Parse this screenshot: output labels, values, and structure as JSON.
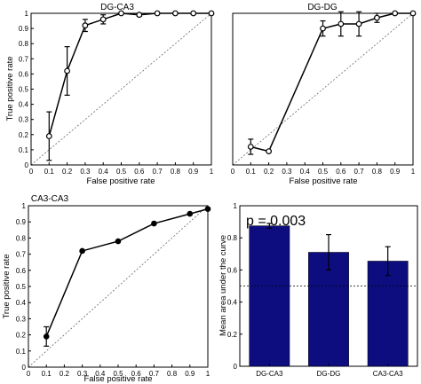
{
  "chart_data": [
    {
      "type": "line",
      "title": "DG-CA3",
      "xlabel": "False positive rate",
      "ylabel": "True positive rate",
      "xlim": [
        0,
        1
      ],
      "ylim": [
        0,
        1
      ],
      "xticks": [
        "0",
        "0.1",
        "0.2",
        "0.3",
        "0.4",
        "0.5",
        "0.6",
        "0.7",
        "0.8",
        "0.9",
        "1"
      ],
      "yticks": [
        "0",
        "0.1",
        "0.2",
        "0.3",
        "0.4",
        "0.5",
        "0.6",
        "0.7",
        "0.8",
        "0.9",
        "1"
      ],
      "marker": "open",
      "diagonal": true,
      "x": [
        0.1,
        0.2,
        0.3,
        0.4,
        0.5,
        0.6,
        0.7,
        0.8,
        0.9,
        1.0
      ],
      "y": [
        0.19,
        0.62,
        0.92,
        0.96,
        1.0,
        0.99,
        1.0,
        1.0,
        1.0,
        1.0
      ],
      "err": [
        0.16,
        0.16,
        0.04,
        0.03,
        0.0,
        0.01,
        0.0,
        0.0,
        0.0,
        0.0
      ]
    },
    {
      "type": "line",
      "title": "DG-DG",
      "xlabel": "False positive rate",
      "ylabel": "",
      "xlim": [
        0,
        1
      ],
      "ylim": [
        0,
        1
      ],
      "xticks": [
        "0",
        "0.1",
        "0.2",
        "0.3",
        "0.4",
        "0.5",
        "0.6",
        "0.7",
        "0.8",
        "0.9",
        "1"
      ],
      "yticks": [],
      "marker": "open",
      "diagonal": true,
      "x": [
        0.1,
        0.2,
        0.5,
        0.6,
        0.7,
        0.8,
        0.9,
        1.0
      ],
      "y": [
        0.12,
        0.09,
        0.9,
        0.93,
        0.93,
        0.97,
        1.0,
        1.0
      ],
      "err": [
        0.05,
        0.0,
        0.05,
        0.08,
        0.08,
        0.03,
        0.0,
        0.0
      ]
    },
    {
      "type": "line",
      "title": "CA3-CA3",
      "xlabel": "False positive rate",
      "ylabel": "True positive rate",
      "xlim": [
        0,
        1
      ],
      "ylim": [
        0,
        1
      ],
      "xticks": [
        "0",
        "0.1",
        "0.2",
        "0.3",
        "0.4",
        "0.5",
        "0.6",
        "0.7",
        "0.8",
        "0.9",
        "1"
      ],
      "yticks": [
        "0",
        "0.1",
        "0.2",
        "0.3",
        "0.4",
        "0.5",
        "0.6",
        "0.7",
        "0.8",
        "0.9",
        "1"
      ],
      "marker": "filled",
      "diagonal": true,
      "x": [
        0.1,
        0.3,
        0.5,
        0.7,
        0.9,
        1.0
      ],
      "y": [
        0.19,
        0.72,
        0.78,
        0.89,
        0.95,
        0.98
      ],
      "err": [
        0.06,
        0.0,
        0.0,
        0.0,
        0.0,
        0.0
      ]
    },
    {
      "type": "bar",
      "title": "",
      "xlabel": "",
      "ylabel": "Mean area under the curve",
      "ylim": [
        0,
        1
      ],
      "yticks": [
        "0",
        "0.2",
        "0.4",
        "0.6",
        "0.8",
        "1"
      ],
      "categories": [
        "DG-CA3",
        "DG-DG",
        "CA3-CA3"
      ],
      "values": [
        0.875,
        0.71,
        0.655
      ],
      "err": [
        0.015,
        0.11,
        0.09
      ],
      "chance_line": 0.5,
      "annotation": "p = 0.003",
      "bar_color": "#0d0d80"
    }
  ]
}
